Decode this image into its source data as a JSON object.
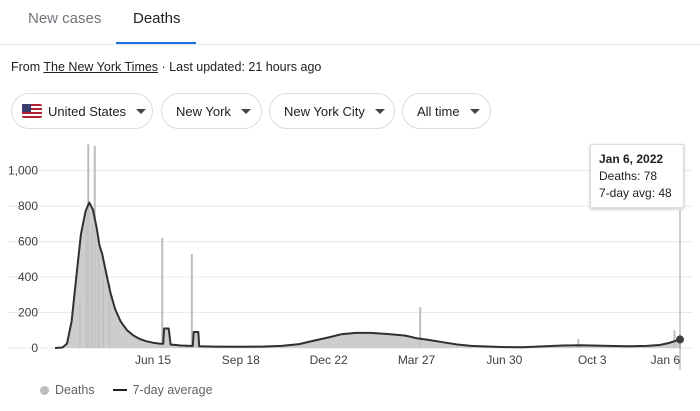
{
  "tabs": [
    {
      "label": "New cases"
    },
    {
      "label": "Deaths"
    }
  ],
  "source": {
    "prefix": "From ",
    "link_text": "The New York Times",
    "updated": " · Last updated: 21 hours ago"
  },
  "filters": [
    {
      "label": "United States",
      "icon": "us-flag-icon"
    },
    {
      "label": "New York"
    },
    {
      "label": "New York City"
    },
    {
      "label": "All time"
    }
  ],
  "tooltip": {
    "date": "Jan 6, 2022",
    "deaths_label": "Deaths: 78",
    "avg_label": "7-day avg: 48"
  },
  "legend": {
    "deaths": "Deaths",
    "average": "7-day average"
  },
  "colors": {
    "accent": "#1a73e8",
    "bars": "#bdbdbd",
    "area": "#c4c4c4",
    "line": "#303030"
  },
  "chart_data": {
    "type": "area",
    "title": "",
    "xlabel": "",
    "ylabel": "",
    "ylim": [
      0,
      1150
    ],
    "xlim": [
      "2020-03-01",
      "2022-01-06"
    ],
    "yticks": [
      0,
      200,
      400,
      600,
      800,
      1000
    ],
    "ytick_labels": [
      "0",
      "200",
      "400",
      "600",
      "800",
      "1,000"
    ],
    "xticks": [
      {
        "date": "2020-06-15",
        "label": "Jun 15"
      },
      {
        "date": "2020-09-18",
        "label": "Sep 18"
      },
      {
        "date": "2020-12-22",
        "label": "Dec 22"
      },
      {
        "date": "2021-03-27",
        "label": "Mar 27"
      },
      {
        "date": "2021-06-30",
        "label": "Jun 30"
      },
      {
        "date": "2021-10-03",
        "label": "Oct 3"
      },
      {
        "date": "2022-01-06",
        "label": "Jan 6"
      }
    ],
    "grid": true,
    "legend_position": "bottom-left",
    "series": [
      {
        "name": "7-day average",
        "points": [
          [
            "2020-03-01",
            0
          ],
          [
            "2020-03-09",
            3
          ],
          [
            "2020-03-14",
            25
          ],
          [
            "2020-03-19",
            150
          ],
          [
            "2020-03-24",
            400
          ],
          [
            "2020-03-29",
            640
          ],
          [
            "2020-04-03",
            770
          ],
          [
            "2020-04-07",
            820
          ],
          [
            "2020-04-11",
            780
          ],
          [
            "2020-04-15",
            680
          ],
          [
            "2020-04-18",
            580
          ],
          [
            "2020-04-21",
            530
          ],
          [
            "2020-04-25",
            430
          ],
          [
            "2020-04-30",
            310
          ],
          [
            "2020-05-05",
            220
          ],
          [
            "2020-05-11",
            150
          ],
          [
            "2020-05-18",
            100
          ],
          [
            "2020-05-25",
            70
          ],
          [
            "2020-06-01",
            50
          ],
          [
            "2020-06-08",
            38
          ],
          [
            "2020-06-15",
            30
          ],
          [
            "2020-06-22",
            25
          ],
          [
            "2020-06-26",
            24
          ],
          [
            "2020-06-27",
            110
          ],
          [
            "2020-07-02",
            110
          ],
          [
            "2020-07-04",
            20
          ],
          [
            "2020-07-15",
            14
          ],
          [
            "2020-07-25",
            12
          ],
          [
            "2020-07-28",
            12
          ],
          [
            "2020-07-29",
            90
          ],
          [
            "2020-08-03",
            90
          ],
          [
            "2020-08-04",
            10
          ],
          [
            "2020-08-20",
            8
          ],
          [
            "2020-09-18",
            7
          ],
          [
            "2020-10-10",
            8
          ],
          [
            "2020-11-01",
            12
          ],
          [
            "2020-11-20",
            22
          ],
          [
            "2020-12-05",
            40
          ],
          [
            "2020-12-22",
            60
          ],
          [
            "2021-01-05",
            78
          ],
          [
            "2021-01-20",
            85
          ],
          [
            "2021-02-05",
            85
          ],
          [
            "2021-02-20",
            80
          ],
          [
            "2021-03-05",
            75
          ],
          [
            "2021-03-15",
            70
          ],
          [
            "2021-03-27",
            55
          ],
          [
            "2021-04-10",
            45
          ],
          [
            "2021-04-25",
            32
          ],
          [
            "2021-05-10",
            20
          ],
          [
            "2021-05-25",
            12
          ],
          [
            "2021-06-30",
            5
          ],
          [
            "2021-07-20",
            4
          ],
          [
            "2021-08-10",
            9
          ],
          [
            "2021-09-01",
            14
          ],
          [
            "2021-09-20",
            16
          ],
          [
            "2021-10-03",
            14
          ],
          [
            "2021-10-20",
            12
          ],
          [
            "2021-11-10",
            10
          ],
          [
            "2021-12-01",
            12
          ],
          [
            "2021-12-15",
            17
          ],
          [
            "2021-12-25",
            28
          ],
          [
            "2022-01-01",
            40
          ],
          [
            "2022-01-06",
            48
          ]
        ]
      },
      {
        "name": "Deaths",
        "spikes": [
          [
            "2020-03-28",
            270
          ],
          [
            "2020-04-04",
            760
          ],
          [
            "2020-04-06",
            1150
          ],
          [
            "2020-04-10",
            700
          ],
          [
            "2020-04-13",
            1140
          ],
          [
            "2020-04-17",
            560
          ],
          [
            "2020-04-22",
            420
          ],
          [
            "2020-04-29",
            360
          ],
          [
            "2020-06-25",
            620
          ],
          [
            "2020-07-27",
            530
          ],
          [
            "2021-03-31",
            230
          ],
          [
            "2021-09-18",
            50
          ],
          [
            "2021-12-31",
            100
          ],
          [
            "2022-01-06",
            78
          ]
        ]
      }
    ],
    "highlight": {
      "date": "2022-01-06",
      "deaths": 78,
      "avg": 48
    }
  }
}
